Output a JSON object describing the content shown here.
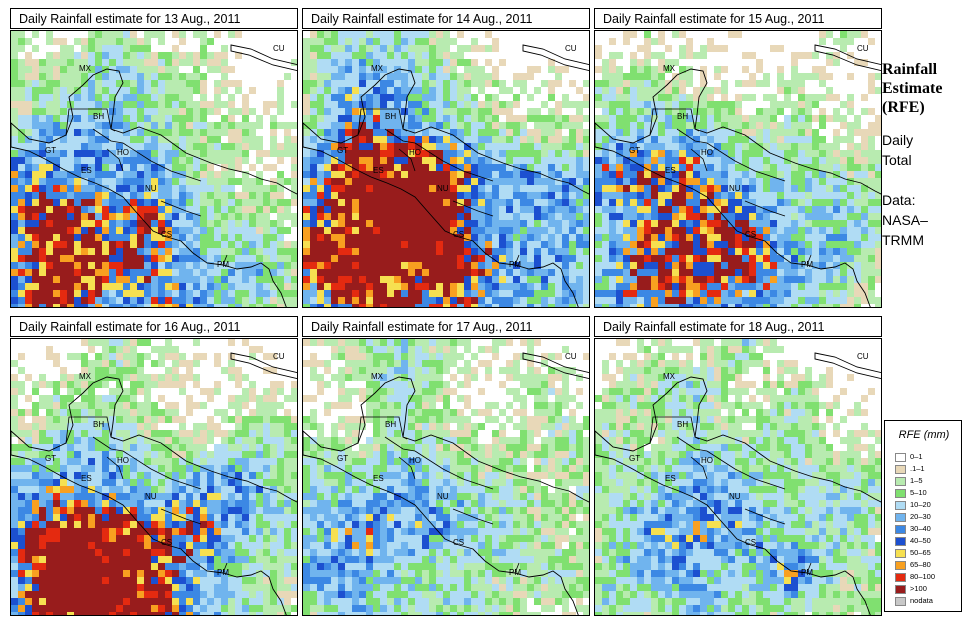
{
  "panels": [
    {
      "title": "Daily Rainfall estimate for  13 Aug., 2011",
      "seed": 13,
      "bias": {
        "sw": 0.8,
        "w": 0.6,
        "e": 0.45,
        "n": 0.35,
        "s": 0.55
      }
    },
    {
      "title": "Daily Rainfall estimate for  14 Aug., 2011",
      "seed": 14,
      "bias": {
        "sw": 0.75,
        "w": 0.75,
        "e": 0.7,
        "n": 0.45,
        "s": 0.65
      }
    },
    {
      "title": "Daily Rainfall estimate for  15 Aug., 2011",
      "seed": 15,
      "bias": {
        "sw": 0.55,
        "w": 0.55,
        "e": 0.5,
        "n": 0.2,
        "s": 0.55
      }
    },
    {
      "title": "Daily Rainfall estimate for  16 Aug., 2011",
      "seed": 16,
      "bias": {
        "sw": 0.85,
        "w": 0.35,
        "e": 0.5,
        "n": 0.3,
        "s": 0.7
      }
    },
    {
      "title": "Daily Rainfall estimate for  17 Aug., 2011",
      "seed": 17,
      "bias": {
        "sw": 0.55,
        "w": 0.35,
        "e": 0.35,
        "n": 0.3,
        "s": 0.3
      }
    },
    {
      "title": "Daily Rainfall estimate for  18 Aug., 2011",
      "seed": 18,
      "bias": {
        "sw": 0.35,
        "w": 0.3,
        "e": 0.55,
        "n": 0.35,
        "s": 0.4
      }
    }
  ],
  "country_labels": [
    "MX",
    "BH",
    "GT",
    "HO",
    "ES",
    "NU",
    "CS",
    "PM",
    "CU"
  ],
  "side": {
    "title_lines": [
      "Rainfall",
      "Estimate",
      "(RFE)"
    ],
    "daily_lines": [
      "Daily",
      "Total"
    ],
    "data_lines": [
      "Data:",
      "NASA–",
      "TRMM"
    ]
  },
  "legend": {
    "title": "RFE (mm)",
    "items": [
      {
        "label": "0–1",
        "color": "#ffffff"
      },
      {
        "label": ".1–1",
        "color": "#e8d8b8"
      },
      {
        "label": "1–5",
        "color": "#b8ebb0"
      },
      {
        "label": "5–10",
        "color": "#80e070"
      },
      {
        "label": "10–20",
        "color": "#b0dcf4"
      },
      {
        "label": "20–30",
        "color": "#70b4ee"
      },
      {
        "label": "30–40",
        "color": "#3c88e4"
      },
      {
        "label": "40–50",
        "color": "#1c50d0"
      },
      {
        "label": "50–65",
        "color": "#f6e050"
      },
      {
        "label": "65–80",
        "color": "#f8a020"
      },
      {
        "label": "80–100",
        "color": "#e42a10"
      },
      {
        "label": ">100",
        "color": "#981c1c"
      },
      {
        "label": "nodata",
        "color": "#c8c8c8"
      }
    ]
  }
}
